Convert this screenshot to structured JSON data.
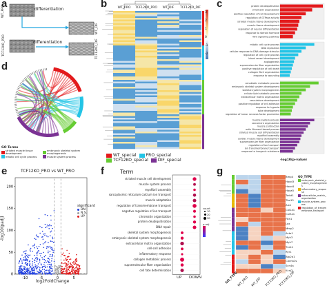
{
  "panel_letters": [
    "a",
    "b",
    "c",
    "d",
    "e",
    "f",
    "g"
  ],
  "panel_a": {
    "rows": [
      {
        "label": "WT_PRO",
        "arrow": "differentiation",
        "result": "WT_DIF"
      },
      {
        "label": "TCF12KO_PRO",
        "arrow": "differentiation",
        "result": "TCF12KO_DIF"
      }
    ]
  },
  "panel_b": {
    "columns": [
      "WT_PRO",
      "TCF12KO_PRO",
      "WT_DIF",
      "TCF12KO_DIF"
    ],
    "colorbar_ticks": [
      "3",
      "2",
      "1",
      "0",
      "-1",
      "-2"
    ],
    "legend": [
      {
        "label": "WT_special",
        "color": "#e31a1c"
      },
      {
        "label": "PRO_special",
        "color": "#23c4e6"
      },
      {
        "label": "TCF12KO_special",
        "color": "#66cc33"
      },
      {
        "label": "DIF_special",
        "color": "#7b3294"
      }
    ]
  },
  "panel_c": {
    "xlabel": "-log10(p-value)",
    "groups": [
      {
        "color": "#e31a1c",
        "terms": [
          "protein deubiquitination",
          "chromatin organization",
          "positive regulation of cell development",
          "regulation of GTPase activity",
          "striated muscle tissue development",
          "muscle tissue development",
          "regulation of neuron differentiation",
          "response to steroid hormone",
          "Wnt signaling pathway"
        ],
        "values": [
          2.0,
          1.5,
          1.2,
          1.0,
          0.9,
          0.85,
          0.8,
          0.7,
          0.6
        ]
      },
      {
        "color": "#23c4e6",
        "terms": [
          "mitotic cell cycle process",
          "DNA replication",
          "cellular response to DNA damage stimulus",
          "regulation of cell cycle process",
          "blood vessel development",
          "angiogenesis",
          "supramolecular fiber organization",
          "positive regulation of cell death",
          "collagen fibril organization",
          "response to wounding"
        ],
        "values": [
          1.6,
          1.2,
          1.0,
          0.85,
          0.7,
          0.65,
          0.6,
          0.55,
          0.5,
          0.45
        ]
      },
      {
        "color": "#66cc33",
        "terms": [
          "xenobiotic metabolic process",
          "embryonic skeletal system development",
          "skeletal system morphogenesis",
          "cellular lipid catabolic process",
          "extracellular matrix organization",
          "vasculature development",
          "positive regulation of cell adhesion",
          "response to hypoxia",
          "tube development",
          "regulation of tumor necrosis factor production"
        ],
        "values": [
          1.8,
          1.4,
          1.2,
          1.0,
          0.9,
          0.8,
          0.7,
          0.6,
          0.55,
          0.5
        ]
      },
      {
        "color": "#7b3294",
        "terms": [
          "muscle system process",
          "sarcomere organization",
          "muscle contraction",
          "actin filament-based process",
          "striated muscle cell differentiation",
          "myofibril assembly",
          "cardiac muscle tissue development",
          "supramolecular fiber organization",
          "regulation of ion transport",
          "ion transmembrane transport",
          "response to inorganic substance"
        ],
        "values": [
          1.6,
          1.4,
          1.3,
          1.2,
          1.1,
          1.0,
          0.95,
          0.9,
          0.8,
          0.7,
          0.6
        ]
      }
    ]
  },
  "panel_d": {
    "legend_title": "GO Terms",
    "terms": [
      {
        "label": "striated muscle tissue development",
        "color": "#e31a1c"
      },
      {
        "label": "embryonic skeletal system morphogenesis",
        "color": "#66cc33"
      },
      {
        "label": "mitotic cell cycle process",
        "color": "#23c4e6"
      },
      {
        "label": "muscle system process",
        "color": "#7b3294"
      }
    ]
  },
  "panel_e": {
    "title": "TCF12KO_PRO vs WT_PRO",
    "xlabel": "log2FoldChange",
    "ylabel": "-log10(padj)",
    "legend_title": "significant",
    "legend": [
      {
        "label": "DN",
        "color": "#1f3fe0"
      },
      {
        "label": "N.S.",
        "color": "#9e9e9e"
      },
      {
        "label": "UP",
        "color": "#e01b1b"
      }
    ],
    "x_ticks": [
      "-10",
      "-5",
      "0",
      "5"
    ],
    "y_ticks": [
      "0",
      "50",
      "100",
      "150",
      "200"
    ]
  },
  "panel_f": {
    "header": "Term",
    "terms": [
      "striated muscle cell development",
      "muscle system process",
      "myofibril assembly",
      "sarcoplasmic reticulum calcium ion transport",
      "muscle adaptation",
      "regulation of transmembrane transport",
      "negative regulation of ion transport",
      "chromatin organization",
      "protein deubiquitination",
      "DNA repair",
      "skeletal system morphogenesis",
      "embryonic skeletal system morphogenesis",
      "extracellular matrix organization",
      "cell-cell adhesion",
      "inflammatory response",
      "collagen metabolic process",
      "supramolecular fiber organization",
      "cell fate determination"
    ],
    "groups": [
      "UP",
      "DOWN"
    ],
    "legend_count_title": "count",
    "legend_count": [
      "10",
      "20",
      "30"
    ],
    "legend_p_title": "p.adj"
  },
  "panel_g": {
    "columns": [
      "WT_PRO",
      "WT_DIF",
      "TCF12KO_PRO",
      "TCF12KO_DIF"
    ],
    "row_annotation_label": "GO_TYPE",
    "legend_title": "GO_TYPE",
    "legend": [
      {
        "label": "embryonic_skeletal_system_morphogenesis",
        "color": "#66cc33"
      },
      {
        "label": "inflammatory_response",
        "color": "#e6b800"
      },
      {
        "label": "extracellular_matrix_organization",
        "color": "#7b3294"
      },
      {
        "label": "muscle_system_process",
        "color": "#23c4e6"
      },
      {
        "label": "regulation_of_transmembrane_transport",
        "color": "#e31a1c"
      }
    ],
    "genes": [
      "Bmp4",
      "Hoxd3",
      "Hoxd4",
      "Hoxa5",
      "Twist1",
      "Tbx15",
      "Alx1",
      "Col1a1",
      "Col3a1",
      "Fbn1",
      "Lox",
      "Mmp2",
      "Acta1",
      "Myh3",
      "Myh7",
      "Tnnt1",
      "Ryr1",
      "Atp2a1",
      "Cacna1s",
      "Scn4a",
      "Kcnj2"
    ]
  }
}
